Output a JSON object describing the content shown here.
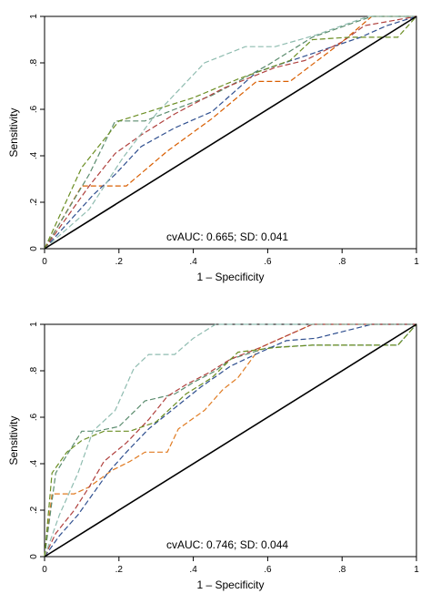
{
  "chart_data": [
    {
      "type": "line",
      "xlabel": "1 – Specificity",
      "ylabel": "Sensitivity",
      "xlim": [
        0,
        1
      ],
      "ylim": [
        0,
        1
      ],
      "xticks": [
        "0",
        ".2",
        ".4",
        ".6",
        ".8",
        "1"
      ],
      "yticks": [
        "0",
        ".2",
        ".4",
        ".6",
        ".8",
        "1"
      ],
      "annotation": "cvAUC: 0.665; SD: 0.041",
      "reference_line": [
        [
          0,
          0
        ],
        [
          1,
          1
        ]
      ],
      "series": [
        {
          "color": "#d95f02",
          "x": [
            0,
            0.1,
            0.22,
            0.33,
            0.45,
            0.57,
            0.66,
            0.8,
            0.88,
            1
          ],
          "y": [
            0,
            0.27,
            0.27,
            0.42,
            0.56,
            0.72,
            0.72,
            0.89,
            1,
            1
          ]
        },
        {
          "color": "#5b8c6e",
          "x": [
            0,
            0.12,
            0.19,
            0.27,
            0.35,
            0.45,
            0.52,
            0.6,
            0.72,
            0.88,
            1
          ],
          "y": [
            0,
            0.32,
            0.55,
            0.55,
            0.6,
            0.66,
            0.72,
            0.79,
            0.91,
            1,
            1
          ]
        },
        {
          "color": "#2f4f8f",
          "x": [
            0,
            0.13,
            0.19,
            0.26,
            0.35,
            0.45,
            0.57,
            0.72,
            0.85,
            0.92,
            1
          ],
          "y": [
            0,
            0.23,
            0.32,
            0.44,
            0.52,
            0.59,
            0.76,
            0.84,
            0.91,
            0.96,
            1
          ]
        },
        {
          "color": "#b0413e",
          "x": [
            0,
            0.12,
            0.19,
            0.26,
            0.35,
            0.48,
            0.62,
            0.7,
            0.8,
            0.86,
            1
          ],
          "y": [
            0,
            0.27,
            0.41,
            0.49,
            0.58,
            0.69,
            0.78,
            0.81,
            0.89,
            0.96,
            1
          ]
        },
        {
          "color": "#8fbcb0",
          "x": [
            0,
            0.12,
            0.21,
            0.3,
            0.43,
            0.54,
            0.62,
            0.73,
            0.87,
            1
          ],
          "y": [
            0,
            0.17,
            0.39,
            0.58,
            0.8,
            0.87,
            0.87,
            0.92,
            1,
            1
          ]
        },
        {
          "color": "#6b8e23",
          "x": [
            0,
            0.1,
            0.2,
            0.28,
            0.4,
            0.52,
            0.66,
            0.72,
            0.82,
            0.95,
            1
          ],
          "y": [
            0,
            0.35,
            0.55,
            0.59,
            0.65,
            0.73,
            0.81,
            0.9,
            0.91,
            0.91,
            1
          ]
        }
      ]
    },
    {
      "type": "line",
      "xlabel": "1 – Specificity",
      "ylabel": "Sensitivity",
      "xlim": [
        0,
        1
      ],
      "ylim": [
        0,
        1
      ],
      "xticks": [
        "0",
        ".2",
        ".4",
        ".6",
        ".8",
        "1"
      ],
      "yticks": [
        "0",
        ".2",
        ".4",
        ".6",
        ".8",
        "1"
      ],
      "annotation": "cvAUC: 0.746; SD: 0.044",
      "reference_line": [
        [
          0,
          0
        ],
        [
          1,
          1
        ]
      ],
      "series": [
        {
          "color": "#e07b22",
          "x": [
            0,
            0.02,
            0.08,
            0.12,
            0.18,
            0.23,
            0.27,
            0.33,
            0.36,
            0.43,
            0.48,
            0.52,
            0.58,
            0.72,
            0.8,
            1
          ],
          "y": [
            0,
            0.27,
            0.27,
            0.3,
            0.37,
            0.41,
            0.45,
            0.45,
            0.55,
            0.63,
            0.72,
            0.77,
            0.9,
            1,
            1,
            1
          ]
        },
        {
          "color": "#5b8c6e",
          "x": [
            0,
            0.03,
            0.1,
            0.14,
            0.2,
            0.27,
            0.35,
            0.4,
            0.46,
            0.5,
            0.6,
            0.72,
            0.85,
            0.95,
            1
          ],
          "y": [
            0,
            0.36,
            0.54,
            0.54,
            0.56,
            0.67,
            0.7,
            0.75,
            0.8,
            0.85,
            0.9,
            0.91,
            0.91,
            0.91,
            1
          ]
        },
        {
          "color": "#2f4f8f",
          "x": [
            0,
            0.04,
            0.09,
            0.13,
            0.17,
            0.22,
            0.28,
            0.35,
            0.42,
            0.5,
            0.58,
            0.65,
            0.73,
            0.88,
            1
          ],
          "y": [
            0,
            0.09,
            0.18,
            0.27,
            0.36,
            0.45,
            0.55,
            0.64,
            0.73,
            0.82,
            0.88,
            0.93,
            0.94,
            1,
            1
          ]
        },
        {
          "color": "#b0413e",
          "x": [
            0,
            0.03,
            0.08,
            0.12,
            0.16,
            0.22,
            0.28,
            0.33,
            0.38,
            0.44,
            0.5,
            0.58,
            0.72,
            0.75,
            1
          ],
          "y": [
            0,
            0.1,
            0.2,
            0.3,
            0.41,
            0.49,
            0.59,
            0.69,
            0.74,
            0.79,
            0.85,
            0.9,
            1,
            1,
            1
          ]
        },
        {
          "color": "#8fbcb0",
          "x": [
            0,
            0.04,
            0.09,
            0.13,
            0.19,
            0.24,
            0.28,
            0.35,
            0.4,
            0.46,
            0.5,
            0.58,
            1
          ],
          "y": [
            0,
            0.18,
            0.36,
            0.54,
            0.63,
            0.81,
            0.87,
            0.87,
            0.94,
            1,
            1,
            1,
            1
          ]
        },
        {
          "color": "#6b8e23",
          "x": [
            0,
            0.02,
            0.06,
            0.1,
            0.16,
            0.23,
            0.3,
            0.38,
            0.45,
            0.52,
            0.62,
            0.72,
            0.82,
            0.95,
            1
          ],
          "y": [
            0,
            0.36,
            0.45,
            0.5,
            0.54,
            0.54,
            0.58,
            0.7,
            0.77,
            0.88,
            0.9,
            0.91,
            0.91,
            0.91,
            1
          ]
        }
      ]
    }
  ]
}
